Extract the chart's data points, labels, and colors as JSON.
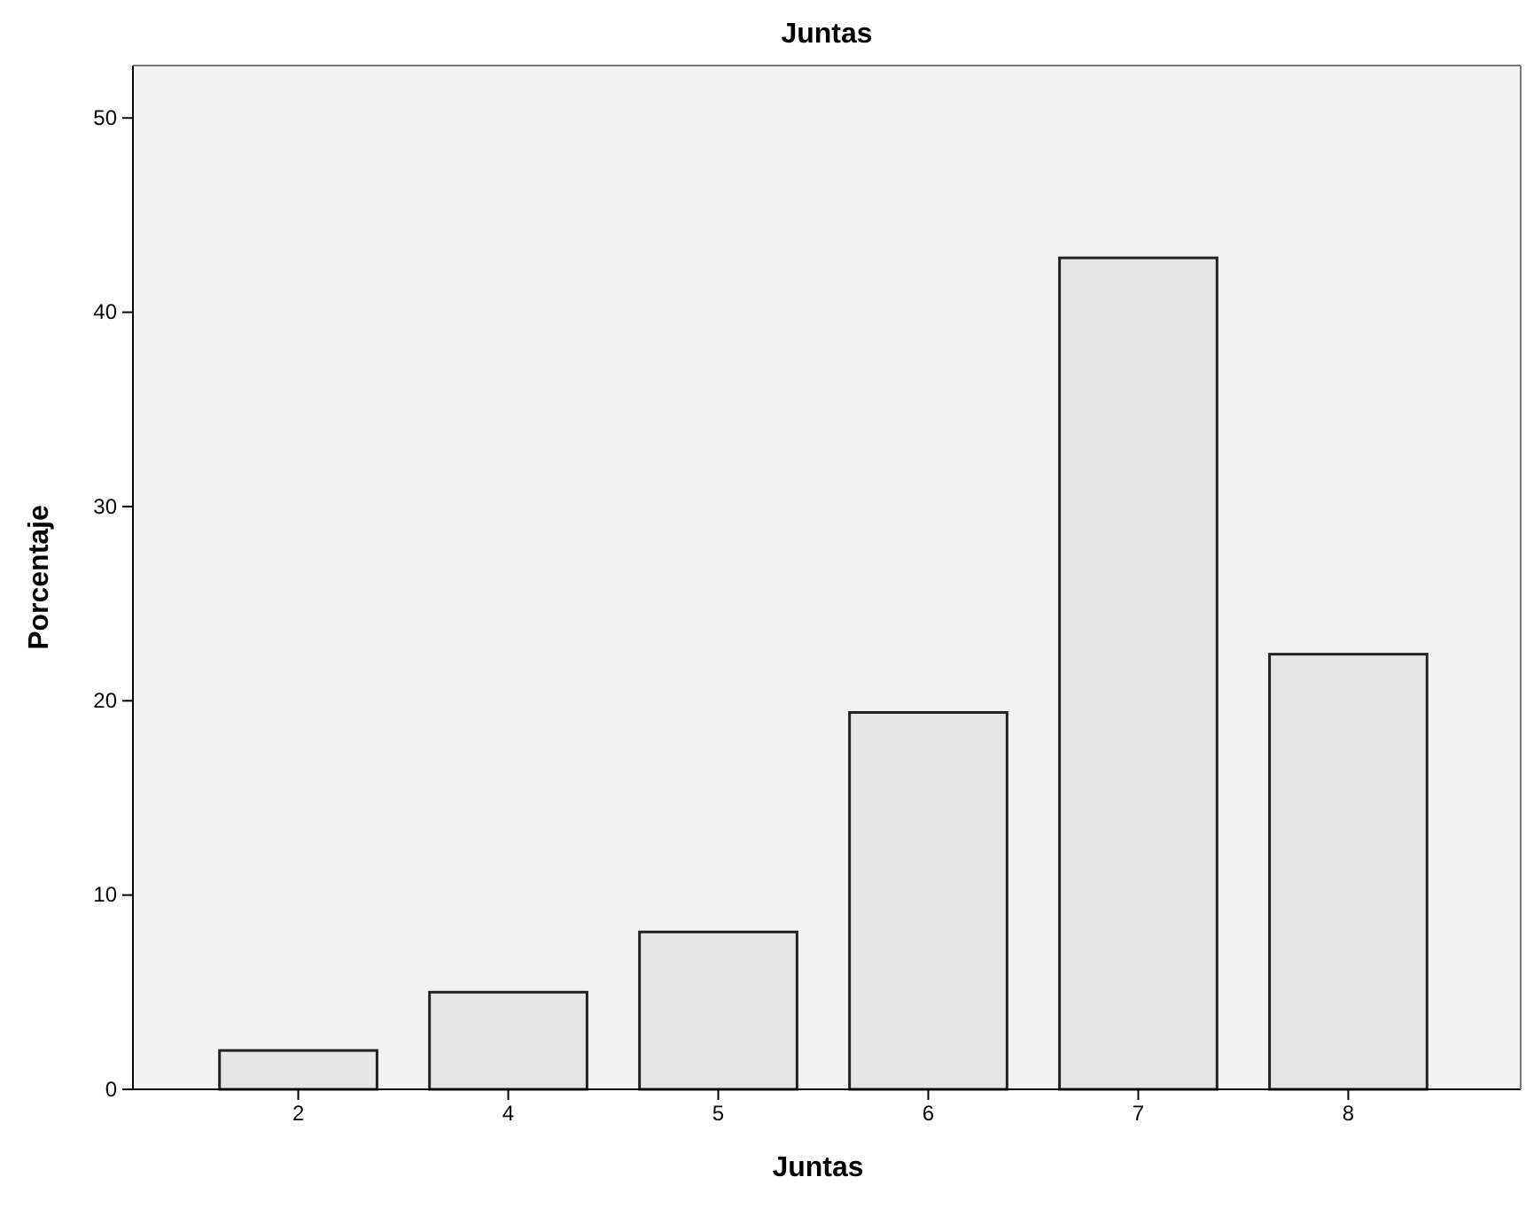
{
  "chart_data": {
    "type": "bar",
    "title": "Juntas",
    "xlabel": "Juntas",
    "ylabel": "Porcentaje",
    "categories": [
      "2",
      "4",
      "5",
      "6",
      "7",
      "8"
    ],
    "values": [
      2.0,
      5.0,
      8.1,
      19.4,
      42.8,
      22.4
    ],
    "color": "#e6e6e6",
    "ylim": [
      0,
      52.7
    ],
    "yticks": [
      0,
      10,
      20,
      30,
      40,
      50
    ],
    "grid": false
  }
}
